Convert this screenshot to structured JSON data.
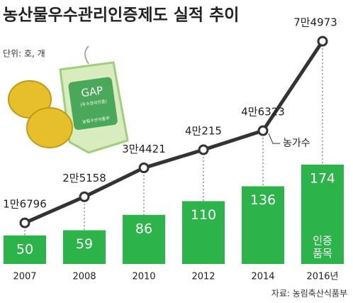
{
  "chart_data": {
    "type": "bar-line",
    "title": "농산물우수관리인증제도 실적 추이",
    "subtitle": "단위: 호, 개",
    "source": "자료: 농림축산식품부",
    "categories": [
      "2007",
      "2008",
      "2010",
      "2012",
      "2014",
      "2016년"
    ],
    "series": [
      {
        "name": "인증 품목",
        "type": "bar",
        "color": "#2cb34a",
        "values": [
          50,
          59,
          86,
          110,
          136,
          174
        ]
      },
      {
        "name": "농가수",
        "type": "line",
        "axis": "y2",
        "color": "#333333",
        "values": [
          16796,
          25158,
          34421,
          40215,
          46323,
          74973
        ],
        "value_labels": [
          "1만6796",
          "2만5158",
          "3만4421",
          "4만215",
          "4만6323",
          "7만4973"
        ]
      }
    ],
    "ylim": [
      0,
      200
    ],
    "y2lim": [
      0,
      80000
    ]
  },
  "illustration": {
    "label": "GAP",
    "sub": "(우수관리인증)",
    "footer": "농림수산식품부"
  }
}
